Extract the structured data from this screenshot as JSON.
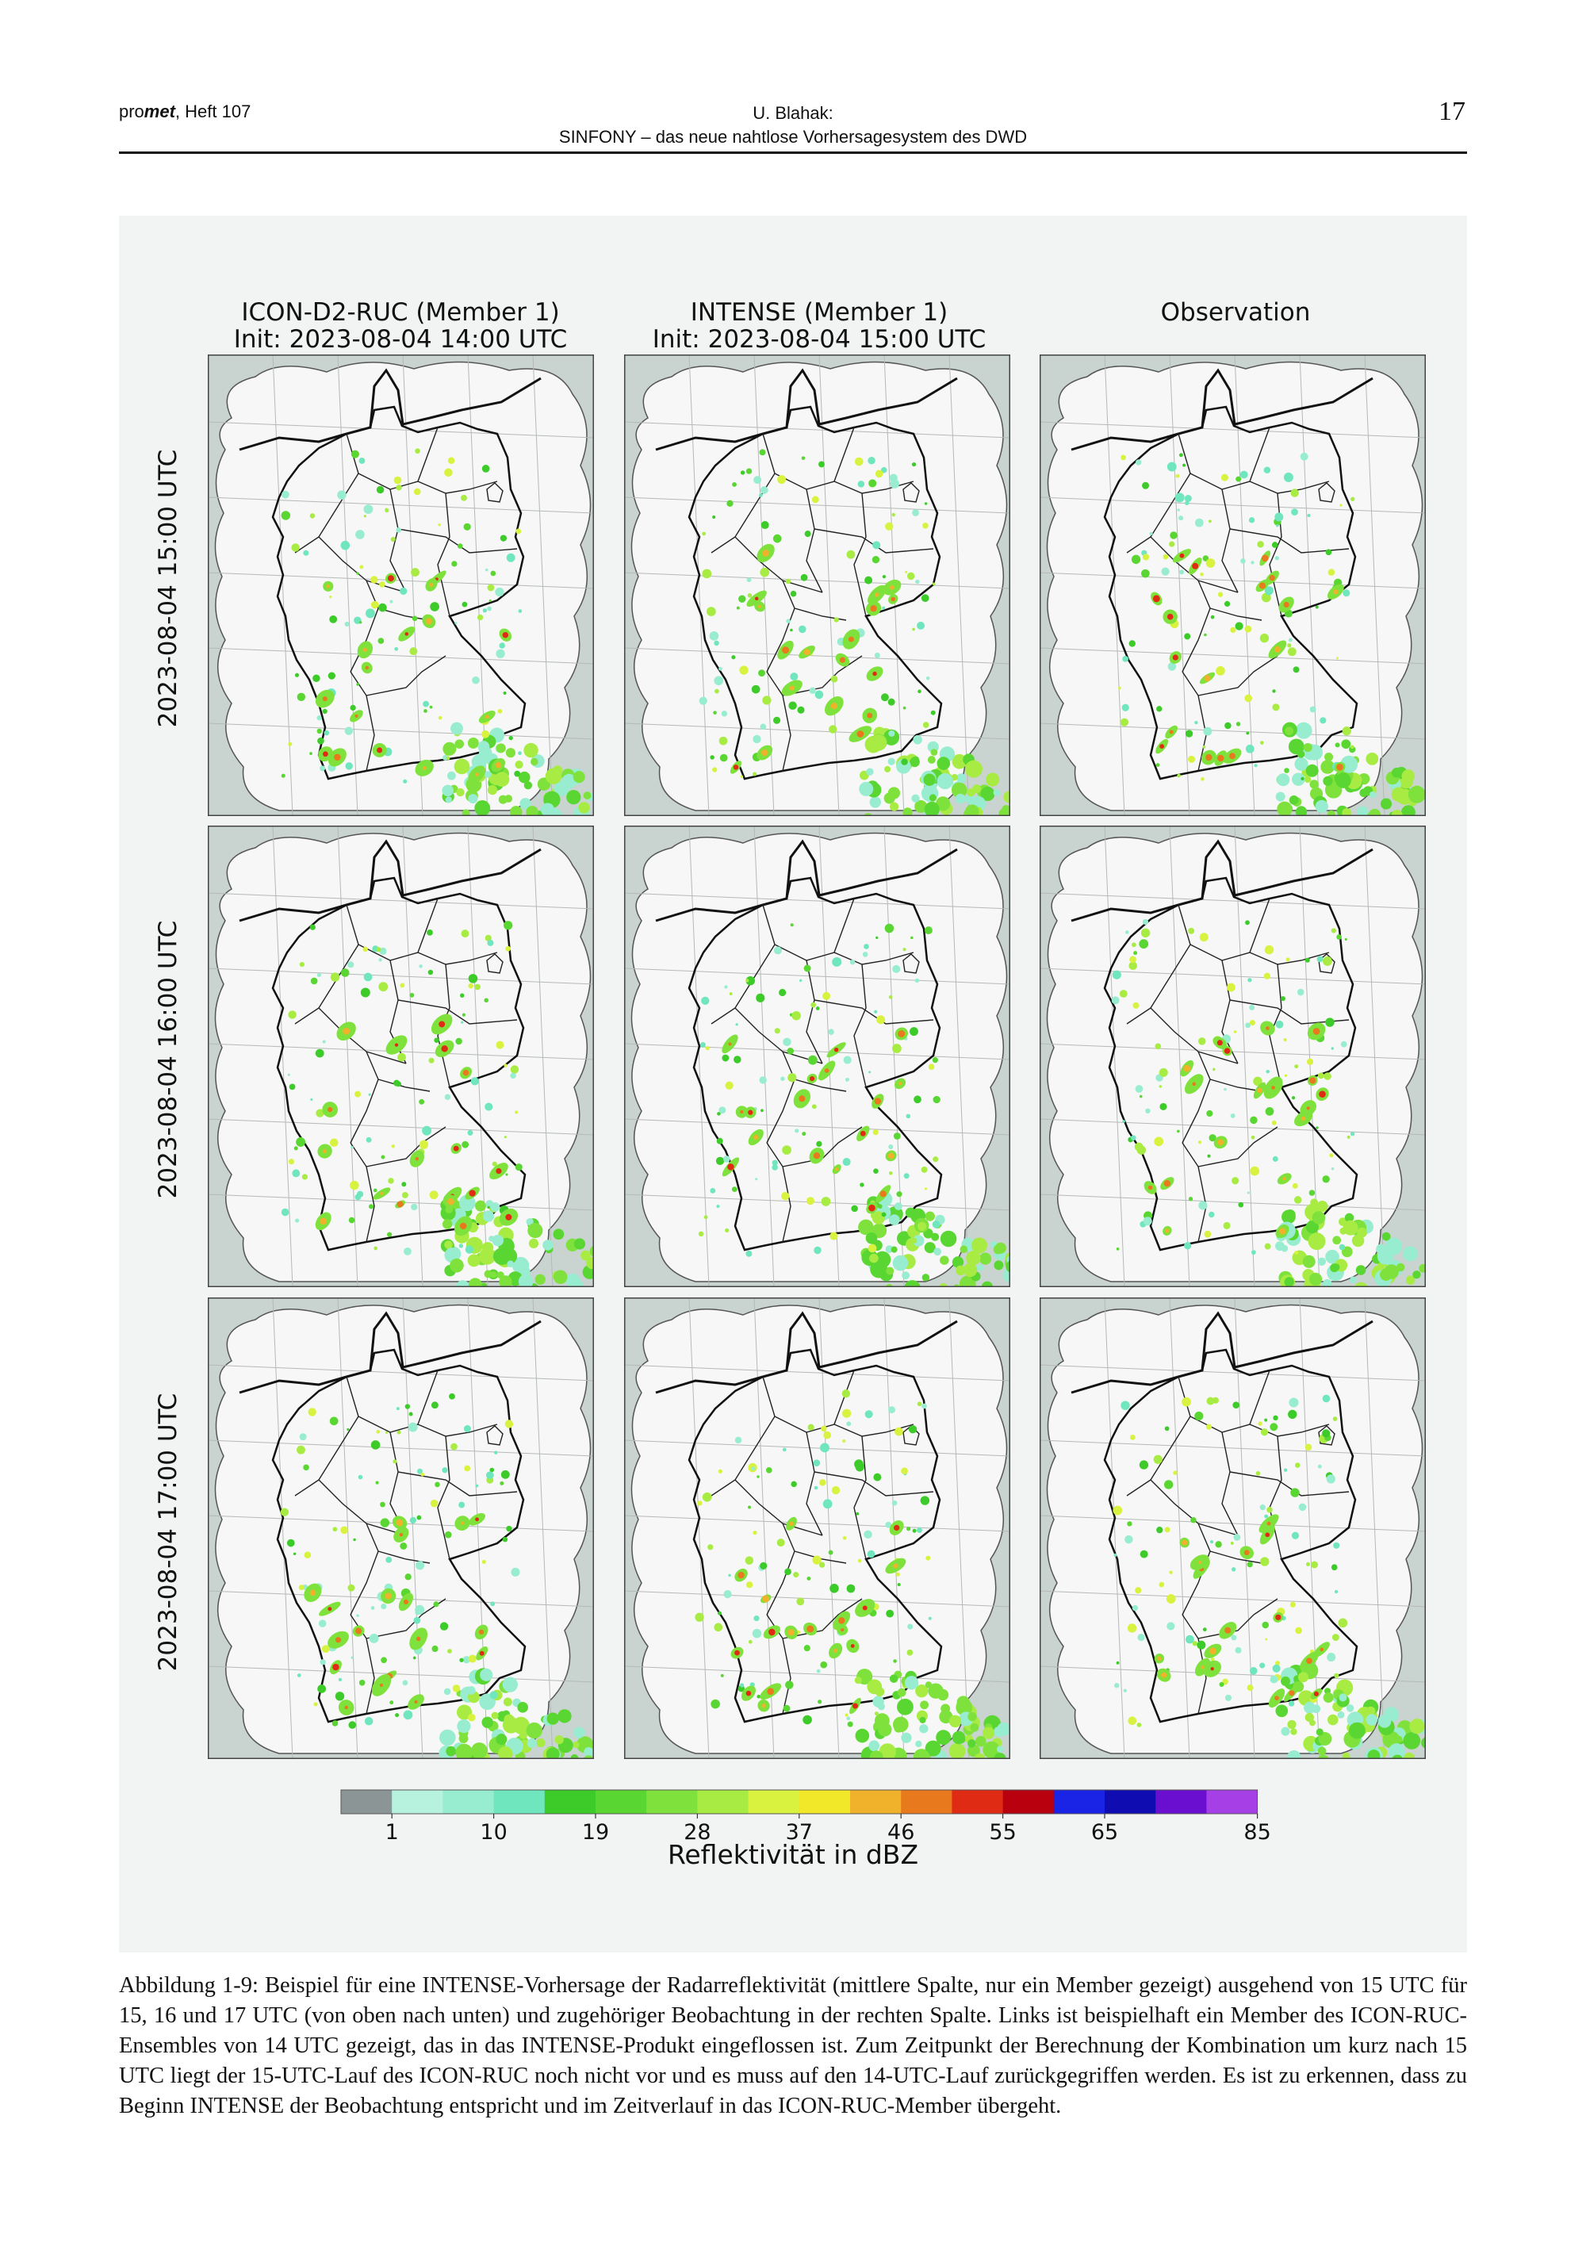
{
  "header": {
    "journal_prefix": "pro",
    "journal_bold": "met",
    "journal_suffix": ", Heft 107",
    "author": "U. Blahak:",
    "article_title": "SINFONY – das neue nahtlose Vorhersagesystem des DWD",
    "page_number": "17"
  },
  "figure": {
    "columns": [
      {
        "line1": "ICON-D2-RUC (Member 1)",
        "line2": "Init: 2023-08-04 14:00 UTC"
      },
      {
        "line1": "INTENSE (Member 1)",
        "line2": "Init: 2023-08-04 15:00 UTC"
      },
      {
        "line1": "Observation",
        "line2": ""
      }
    ],
    "rows": [
      "2023-08-04 15:00 UTC",
      "2023-08-04 16:00 UTC",
      "2023-08-04 17:00 UTC"
    ],
    "colorbar": {
      "label": "Reflektivität in dBZ",
      "ticks": [
        "1",
        "10",
        "19",
        "28",
        "37",
        "46",
        "55",
        "65",
        "85"
      ],
      "colors": [
        "#8c9596",
        "#b6f2de",
        "#98ecd0",
        "#6fe6bd",
        "#3dcb2a",
        "#5ad632",
        "#7fe23c",
        "#a8ec43",
        "#d9f23f",
        "#f2e82a",
        "#efb22a",
        "#e9791d",
        "#e02b14",
        "#b8000e",
        "#1a24e6",
        "#0f0cb2",
        "#6a0fcf",
        "#a63fe6"
      ]
    }
  },
  "caption": "Abbildung 1-9: Beispiel für eine INTENSE-Vorhersage der Radarreflektivität (mittlere Spalte, nur ein Member gezeigt) ausgehend von 15 UTC für 15, 16 und 17 UTC (von oben nach unten) und zugehöriger Beobachtung in der rechten Spalte. Links ist beispielhaft ein Member des ICON-RUC-Ensembles von 14 UTC gezeigt, das in das INTENSE-Produkt eingeflossen ist. Zum Zeitpunkt der Berechnung der Kombination um kurz nach 15 UTC liegt der 15-UTC-Lauf des ICON-RUC noch nicht vor und es muss auf den 14-UTC-Lauf zurückgegriffen werden. Es ist zu erkennen, dass zu Beginn INTENSE der Beobachtung entspricht und im Zeitverlauf in das ICON-RUC-Member übergeht."
}
